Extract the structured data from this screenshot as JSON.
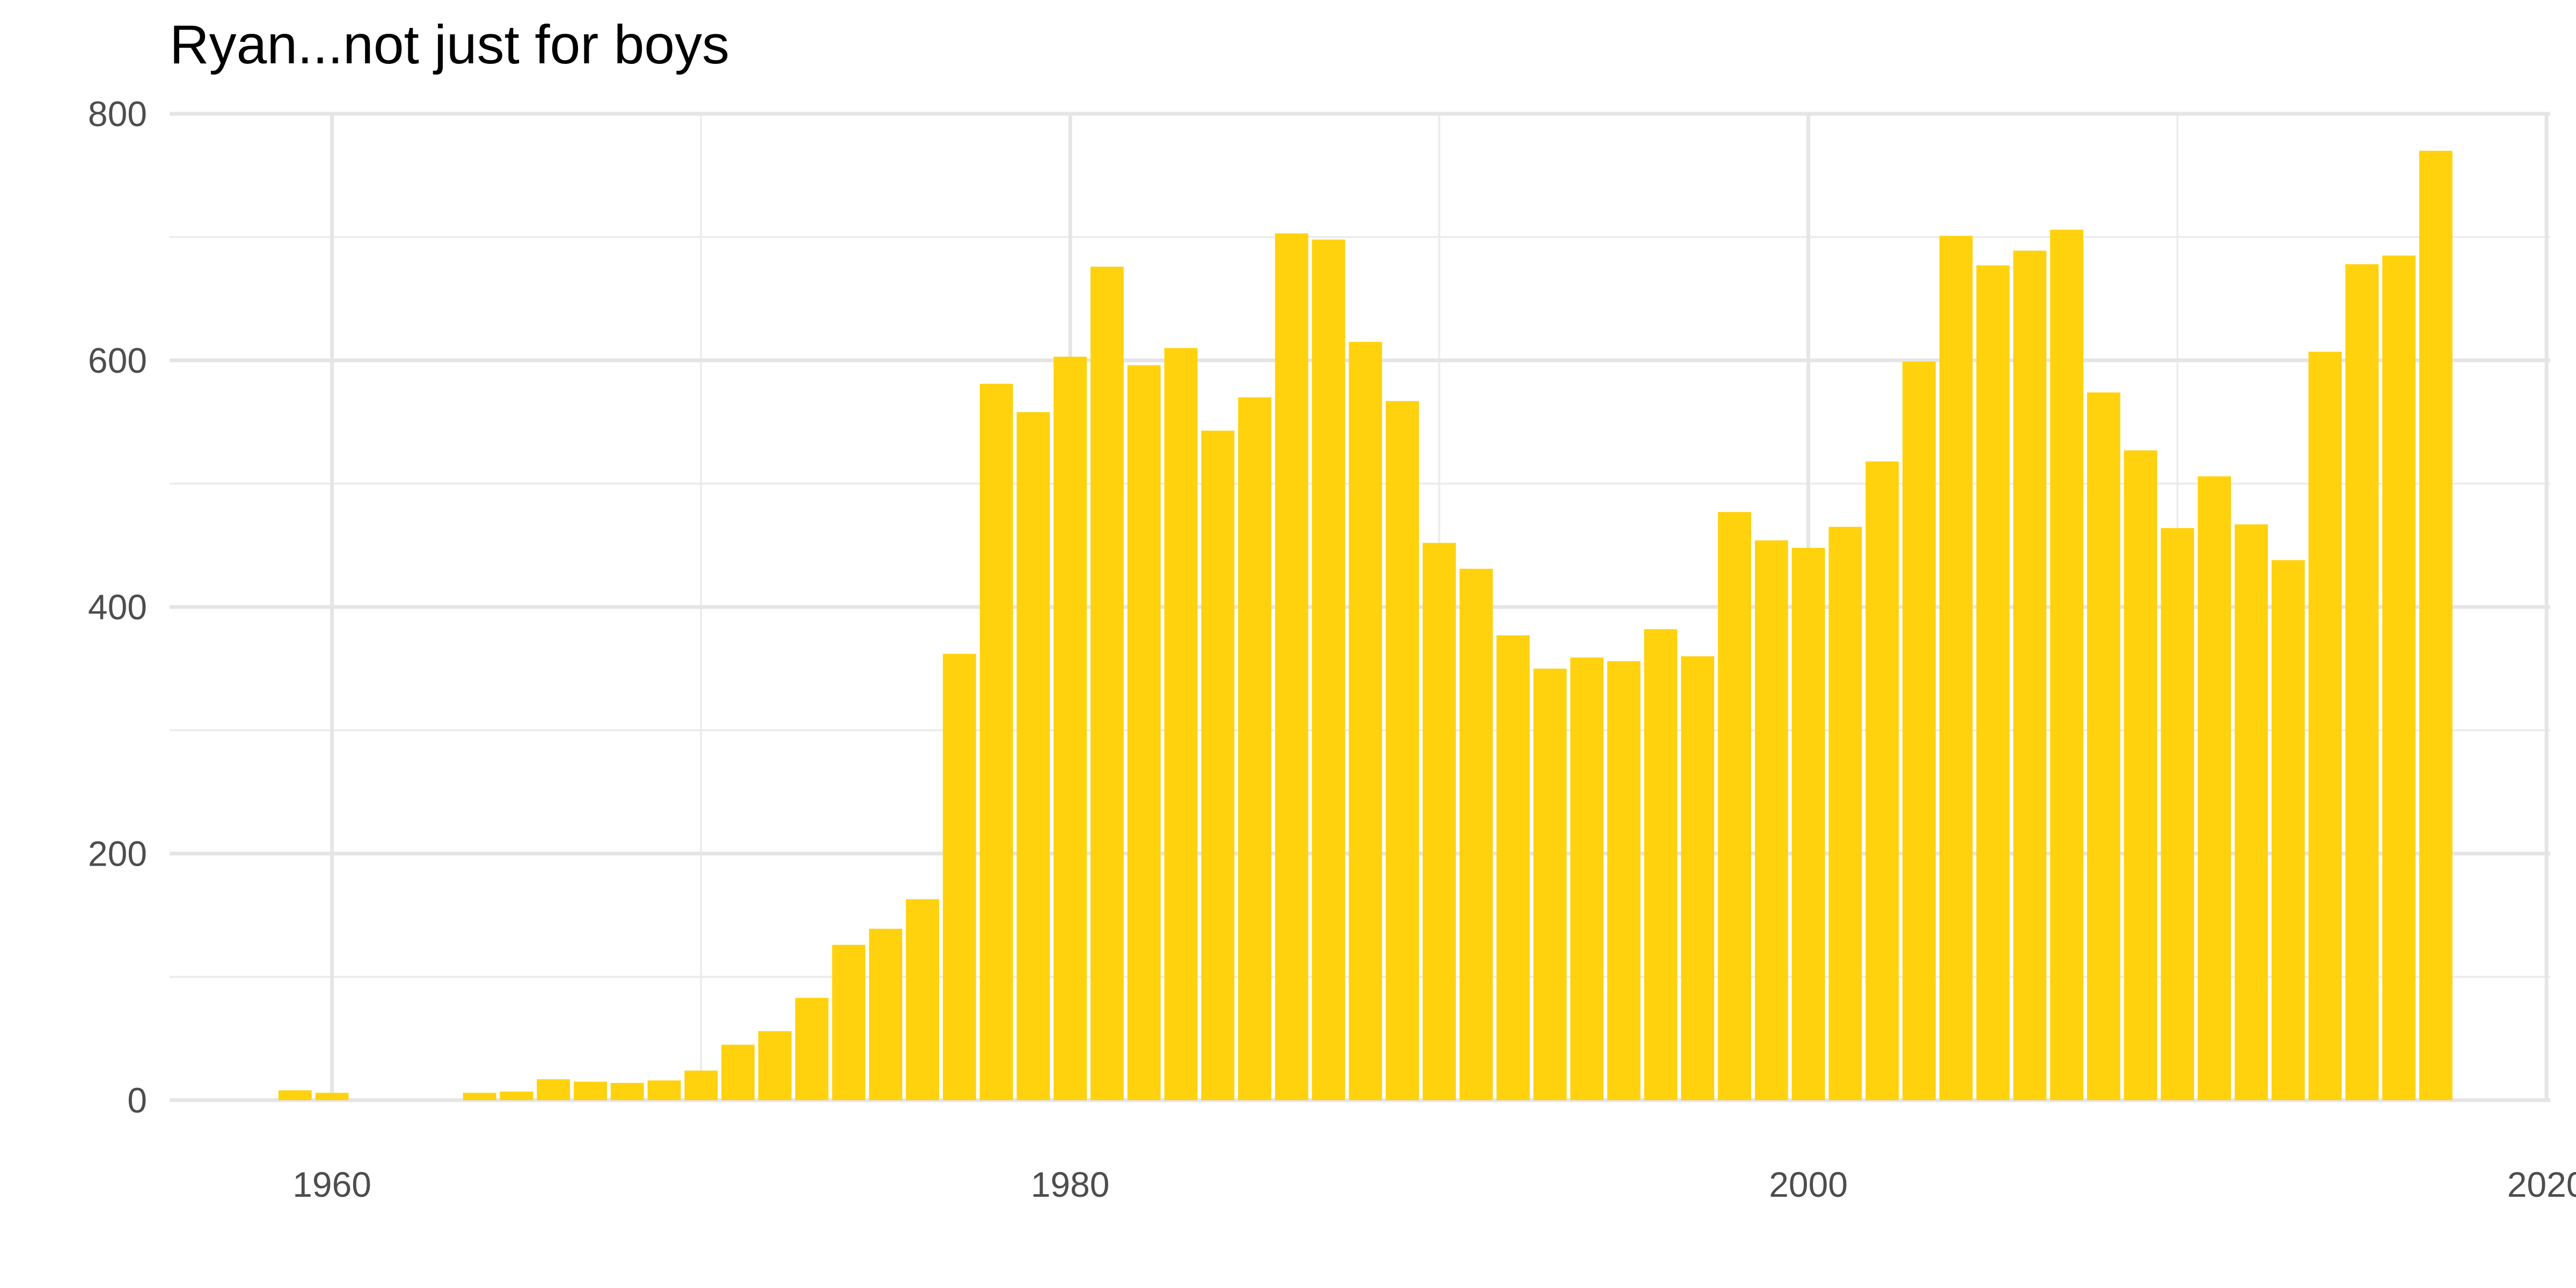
{
  "chart_data": {
    "type": "bar",
    "title": "Ryan...not just for boys",
    "xlabel": "",
    "ylabel": "",
    "xlim": [
      1955.6,
      2020.1
    ],
    "ylim": [
      0,
      800
    ],
    "x_ticks": [
      1960,
      1980,
      2000,
      2020
    ],
    "x_tick_labels": [
      "1960",
      "1980",
      "2000",
      "2020"
    ],
    "x_minor_ticks": [
      1970,
      1990,
      2010
    ],
    "y_ticks": [
      0,
      200,
      400,
      600,
      800
    ],
    "y_tick_labels": [
      "0",
      "200",
      "400",
      "600",
      "800"
    ],
    "y_minor_ticks": [
      100,
      300,
      500,
      700
    ],
    "grid": true,
    "legend": "none",
    "bar_color": "#ffd20d",
    "x": [
      1959,
      1960,
      1961,
      1962,
      1963,
      1964,
      1965,
      1966,
      1967,
      1968,
      1969,
      1970,
      1971,
      1972,
      1973,
      1974,
      1975,
      1976,
      1977,
      1978,
      1979,
      1980,
      1981,
      1982,
      1983,
      1984,
      1985,
      1986,
      1987,
      1988,
      1989,
      1990,
      1991,
      1992,
      1993,
      1994,
      1995,
      1996,
      1997,
      1998,
      1999,
      2000,
      2001,
      2002,
      2003,
      2004,
      2005,
      2006,
      2007,
      2008,
      2009,
      2010,
      2011,
      2012,
      2013,
      2014,
      2015,
      2016,
      2017
    ],
    "values": [
      8,
      6,
      0,
      0,
      0,
      6,
      7,
      17,
      15,
      14,
      16,
      24,
      45,
      56,
      83,
      126,
      139,
      163,
      362,
      581,
      558,
      603,
      676,
      596,
      610,
      543,
      570,
      703,
      698,
      615,
      567,
      452,
      431,
      377,
      350,
      359,
      356,
      382,
      360,
      477,
      454,
      448,
      465,
      518,
      599,
      701,
      677,
      689,
      706,
      574,
      527,
      464,
      506,
      467,
      438,
      607,
      678,
      685,
      770
    ]
  }
}
